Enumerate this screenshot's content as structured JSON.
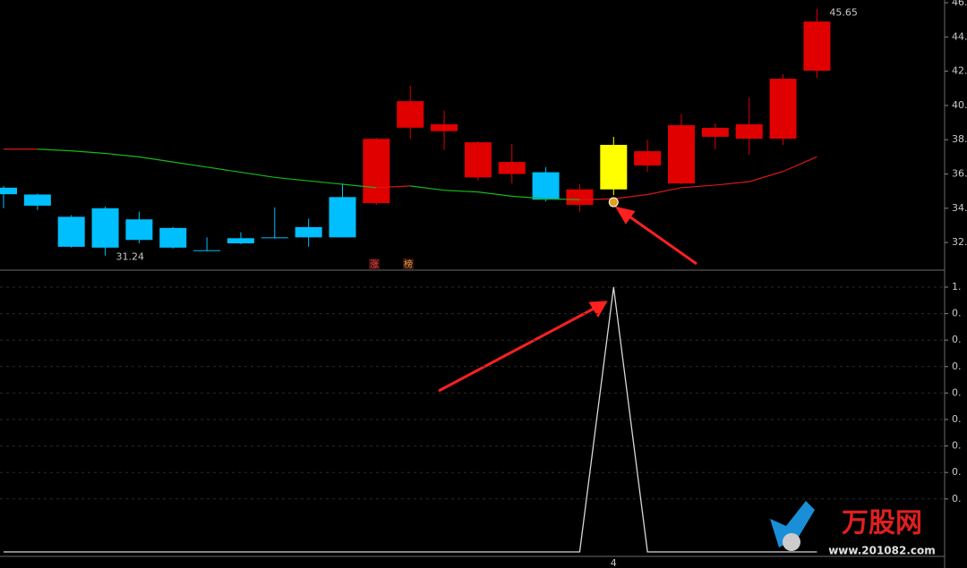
{
  "chart_data": [
    {
      "type": "candlestick",
      "open": [
        35.2,
        34.8,
        33.5,
        34.0,
        33.35,
        32.85,
        31.55,
        32.25,
        32.3,
        32.9,
        34.65,
        34.3,
        38.7,
        38.5,
        35.8,
        36.0,
        36.1,
        34.2,
        35.1,
        36.5,
        35.45,
        38.17,
        38.06,
        38.06,
        42.03
      ],
      "high": [
        35.3,
        34.85,
        33.6,
        34.1,
        33.8,
        32.9,
        32.3,
        32.6,
        34.05,
        33.4,
        35.45,
        38.1,
        41.15,
        39.7,
        37.9,
        37.75,
        36.4,
        35.4,
        38.17,
        38.0,
        39.5,
        38.95,
        40.46,
        41.82,
        45.65
      ],
      "low": [
        34.0,
        33.9,
        31.7,
        31.24,
        31.95,
        31.65,
        31.5,
        31.9,
        32.25,
        31.75,
        32.3,
        34.2,
        38.05,
        37.4,
        35.6,
        35.45,
        34.4,
        33.8,
        34.77,
        36.13,
        35.4,
        37.44,
        37.12,
        37.7,
        41.6
      ],
      "close": [
        34.82,
        34.15,
        31.75,
        31.7,
        32.15,
        31.7,
        31.5,
        31.95,
        32.25,
        32.3,
        32.3,
        38.05,
        40.25,
        38.9,
        37.85,
        36.7,
        34.5,
        35.1,
        37.7,
        37.33,
        38.85,
        38.69,
        38.9,
        41.56,
        44.9
      ],
      "colors": [
        "#00bfff",
        "#00bfff",
        "#00bfff",
        "#00bfff",
        "#00bfff",
        "#00bfff",
        "#00bfff",
        "#00bfff",
        "#00bfff",
        "#00bfff",
        "#00bfff",
        "#e00000",
        "#e00000",
        "#e00000",
        "#e00000",
        "#e00000",
        "#00bfff",
        "#e00000",
        "#ffff00",
        "#e00000",
        "#e00000",
        "#e00000",
        "#e00000",
        "#e00000",
        "#e00000"
      ],
      "ma": {
        "values": [
          37.45,
          37.45,
          37.35,
          37.2,
          37.0,
          36.7,
          36.4,
          36.1,
          35.8,
          35.6,
          35.4,
          35.2,
          35.3,
          35.05,
          34.95,
          34.7,
          34.55,
          34.5,
          34.55,
          34.8,
          35.2,
          35.35,
          35.55,
          36.15,
          37.0
        ],
        "up_color": "#d81818",
        "down_color": "#18b818"
      },
      "annotations": [
        {
          "label": "31.24",
          "value": 31.24
        },
        {
          "label": "45.65",
          "value": 45.65
        }
      ],
      "markers": [
        "涨",
        "榜"
      ],
      "ylim": [
        30.9,
        46.15
      ],
      "yticks": [
        {
          "value": 46,
          "label": "46."
        },
        {
          "value": 44,
          "label": "44."
        },
        {
          "value": 42,
          "label": "42."
        },
        {
          "value": 40,
          "label": "40."
        },
        {
          "value": 38,
          "label": "38."
        },
        {
          "value": 36,
          "label": "36."
        },
        {
          "value": 34,
          "label": "34."
        },
        {
          "value": 32,
          "label": "32."
        }
      ],
      "grid": false
    },
    {
      "type": "line",
      "values": [
        0,
        0,
        0,
        0,
        0,
        0,
        0,
        0,
        0,
        0,
        0,
        0,
        0,
        0,
        0,
        0,
        0,
        0,
        1,
        0,
        0,
        0,
        0,
        0,
        0
      ],
      "color": "#d8d8d8",
      "xlabel": "4",
      "ylim": [
        0,
        1
      ],
      "yticks": [
        {
          "value": 1,
          "label": "1."
        },
        {
          "value": 0.9,
          "label": "0."
        },
        {
          "value": 0.8,
          "label": "0."
        },
        {
          "value": 0.7,
          "label": "0."
        },
        {
          "value": 0.6,
          "label": "0."
        },
        {
          "value": 0.5,
          "label": "0."
        },
        {
          "value": 0.4,
          "label": "0."
        },
        {
          "value": 0.3,
          "label": "0."
        },
        {
          "value": 0.2,
          "label": "0."
        }
      ],
      "grid": true
    }
  ],
  "watermark": {
    "name": "万股网",
    "url": "www.201082.com"
  }
}
